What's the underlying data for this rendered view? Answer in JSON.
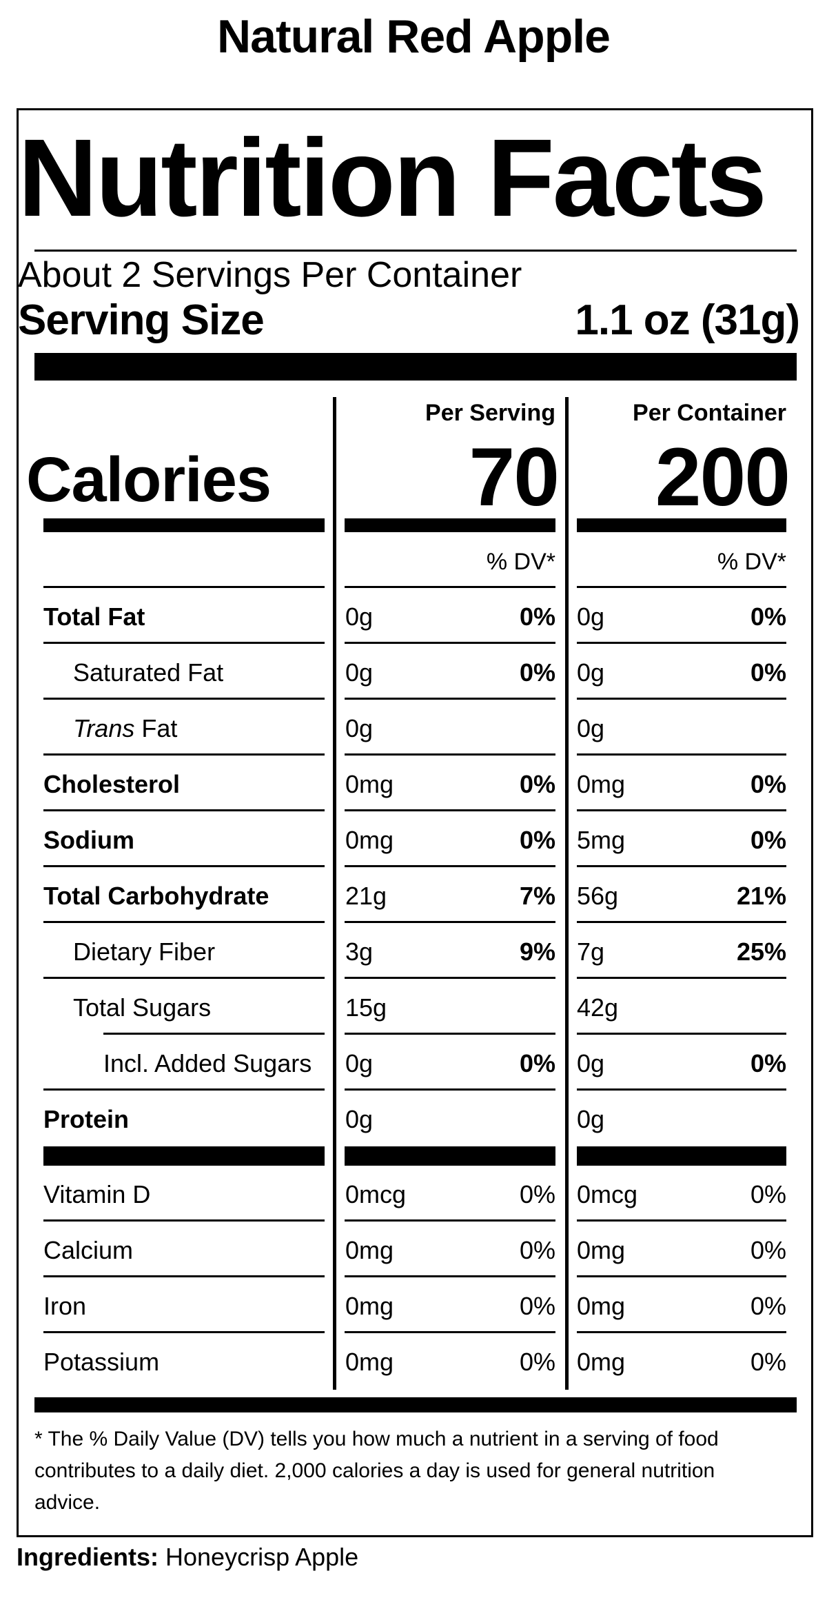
{
  "product_name": "Natural Red Apple",
  "header": {
    "title": "Nutrition Facts",
    "servings_per_container": "About 2 Servings Per Container",
    "serving_size_label": "Serving Size",
    "serving_size_value": "1.1 oz (31g)"
  },
  "columns": {
    "per_serving_label": "Per Serving",
    "per_container_label": "Per Container",
    "dv_label": "% DV*"
  },
  "calories": {
    "label": "Calories",
    "per_serving": "70",
    "per_container": "200"
  },
  "nutrients": [
    {
      "name": "Total Fat",
      "serving_amount": "0g",
      "serving_dv": "0%",
      "container_amount": "0g",
      "container_dv": "0%"
    },
    {
      "name": "Saturated Fat",
      "serving_amount": "0g",
      "serving_dv": "0%",
      "container_amount": "0g",
      "container_dv": "0%"
    },
    {
      "name_italic": "Trans",
      "name_rest": " Fat",
      "serving_amount": "0g",
      "serving_dv": "",
      "container_amount": "0g",
      "container_dv": ""
    },
    {
      "name": "Cholesterol",
      "serving_amount": "0mg",
      "serving_dv": "0%",
      "container_amount": "0mg",
      "container_dv": "0%"
    },
    {
      "name": "Sodium",
      "serving_amount": "0mg",
      "serving_dv": "0%",
      "container_amount": "5mg",
      "container_dv": "0%"
    },
    {
      "name": "Total Carbohydrate",
      "serving_amount": "21g",
      "serving_dv": "7%",
      "container_amount": "56g",
      "container_dv": "21%"
    },
    {
      "name": "Dietary Fiber",
      "serving_amount": "3g",
      "serving_dv": "9%",
      "container_amount": "7g",
      "container_dv": "25%"
    },
    {
      "name": "Total Sugars",
      "serving_amount": "15g",
      "serving_dv": "",
      "container_amount": "42g",
      "container_dv": ""
    },
    {
      "name": "Incl. Added Sugars",
      "serving_amount": "0g",
      "serving_dv": "0%",
      "container_amount": "0g",
      "container_dv": "0%"
    },
    {
      "name": "Protein",
      "serving_amount": "0g",
      "serving_dv": "",
      "container_amount": "0g",
      "container_dv": ""
    }
  ],
  "vitamins": [
    {
      "name": "Vitamin D",
      "serving_amount": "0mcg",
      "serving_dv": "0%",
      "container_amount": "0mcg",
      "container_dv": "0%"
    },
    {
      "name": "Calcium",
      "serving_amount": "0mg",
      "serving_dv": "0%",
      "container_amount": "0mg",
      "container_dv": "0%"
    },
    {
      "name": "Iron",
      "serving_amount": "0mg",
      "serving_dv": "0%",
      "container_amount": "0mg",
      "container_dv": "0%"
    },
    {
      "name": "Potassium",
      "serving_amount": "0mg",
      "serving_dv": "0%",
      "container_amount": "0mg",
      "container_dv": "0%"
    }
  ],
  "footnote": "* The % Daily Value (DV) tells you how much a nutrient in a serving of food contributes to a daily diet. 2,000 calories a day is used for general nutrition advice.",
  "ingredients": {
    "label": "Ingredients:",
    "value": " Honeycrisp Apple"
  }
}
